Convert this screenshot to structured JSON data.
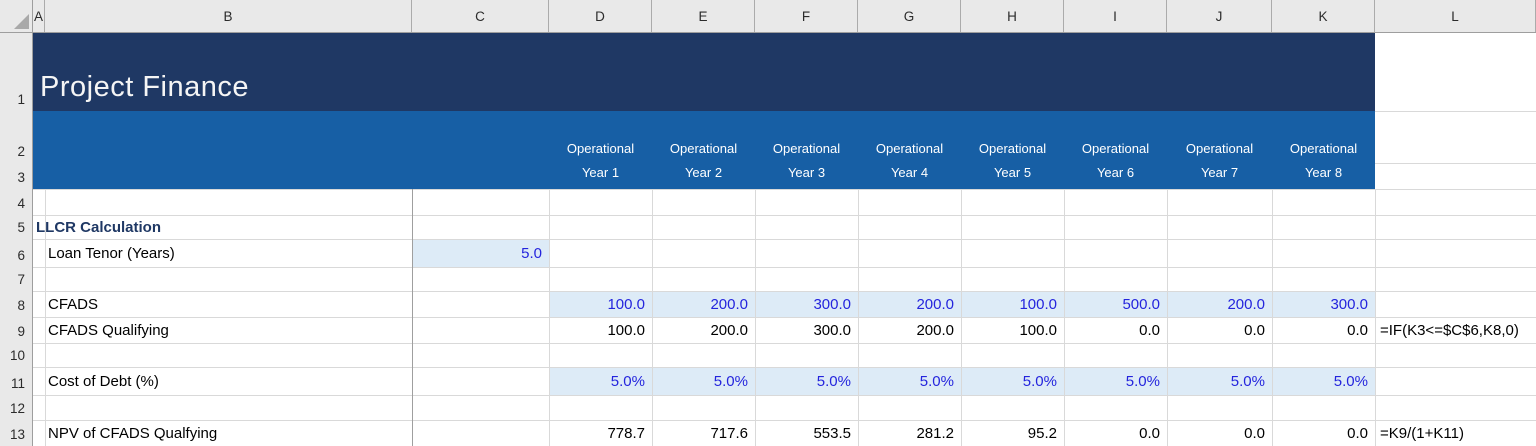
{
  "banner": {
    "title": "Project Finance",
    "year_headers": [
      {
        "col": "D",
        "line1": "Operational",
        "line2": "Year 1"
      },
      {
        "col": "E",
        "line1": "Operational",
        "line2": "Year 2"
      },
      {
        "col": "F",
        "line1": "Operational",
        "line2": "Year 3"
      },
      {
        "col": "G",
        "line1": "Operational",
        "line2": "Year 4"
      },
      {
        "col": "H",
        "line1": "Operational",
        "line2": "Year 5"
      },
      {
        "col": "I",
        "line1": "Operational",
        "line2": "Year 6"
      },
      {
        "col": "J",
        "line1": "Operational",
        "line2": "Year 7"
      },
      {
        "col": "K",
        "line1": "Operational",
        "line2": "Year 8"
      }
    ]
  },
  "sheet": {
    "column_letters": [
      "A",
      "B",
      "C",
      "D",
      "E",
      "F",
      "G",
      "H",
      "I",
      "J",
      "K",
      "L"
    ],
    "row_numbers": [
      "1",
      "2",
      "3",
      "4",
      "5",
      "6",
      "7",
      "8",
      "9",
      "10",
      "11",
      "12",
      "13"
    ]
  },
  "labels": [
    {
      "row": 5,
      "text": "LLCR Calculation",
      "style": "section"
    },
    {
      "row": 6,
      "text": "Loan Tenor (Years)",
      "style": "plain"
    },
    {
      "row": 8,
      "text": "CFADS",
      "style": "plain"
    },
    {
      "row": 9,
      "text": "CFADS Qualifying",
      "style": "plain"
    },
    {
      "row": 11,
      "text": "Cost of Debt (%)",
      "style": "plain"
    },
    {
      "row": 13,
      "text": "NPV of CFADS Qualfying",
      "style": "plain"
    }
  ],
  "cells": [
    {
      "row": 6,
      "col": "C",
      "text": "5.0",
      "style": "input"
    },
    {
      "row": 8,
      "col": "D",
      "text": "100.0",
      "style": "input"
    },
    {
      "row": 8,
      "col": "E",
      "text": "200.0",
      "style": "input"
    },
    {
      "row": 8,
      "col": "F",
      "text": "300.0",
      "style": "input"
    },
    {
      "row": 8,
      "col": "G",
      "text": "200.0",
      "style": "input"
    },
    {
      "row": 8,
      "col": "H",
      "text": "100.0",
      "style": "input"
    },
    {
      "row": 8,
      "col": "I",
      "text": "500.0",
      "style": "input"
    },
    {
      "row": 8,
      "col": "J",
      "text": "200.0",
      "style": "input"
    },
    {
      "row": 8,
      "col": "K",
      "text": "300.0",
      "style": "input"
    },
    {
      "row": 9,
      "col": "D",
      "text": "100.0",
      "style": "calc"
    },
    {
      "row": 9,
      "col": "E",
      "text": "200.0",
      "style": "calc"
    },
    {
      "row": 9,
      "col": "F",
      "text": "300.0",
      "style": "calc"
    },
    {
      "row": 9,
      "col": "G",
      "text": "200.0",
      "style": "calc"
    },
    {
      "row": 9,
      "col": "H",
      "text": "100.0",
      "style": "calc"
    },
    {
      "row": 9,
      "col": "I",
      "text": "0.0",
      "style": "calc"
    },
    {
      "row": 9,
      "col": "J",
      "text": "0.0",
      "style": "calc"
    },
    {
      "row": 9,
      "col": "K",
      "text": "0.0",
      "style": "calc"
    },
    {
      "row": 9,
      "col": "L",
      "text": "=IF(K3<=$C$6,K8,0)",
      "style": "formula"
    },
    {
      "row": 11,
      "col": "D",
      "text": "5.0%",
      "style": "input"
    },
    {
      "row": 11,
      "col": "E",
      "text": "5.0%",
      "style": "input"
    },
    {
      "row": 11,
      "col": "F",
      "text": "5.0%",
      "style": "input"
    },
    {
      "row": 11,
      "col": "G",
      "text": "5.0%",
      "style": "input"
    },
    {
      "row": 11,
      "col": "H",
      "text": "5.0%",
      "style": "input"
    },
    {
      "row": 11,
      "col": "I",
      "text": "5.0%",
      "style": "input"
    },
    {
      "row": 11,
      "col": "J",
      "text": "5.0%",
      "style": "input"
    },
    {
      "row": 11,
      "col": "K",
      "text": "5.0%",
      "style": "input"
    },
    {
      "row": 13,
      "col": "D",
      "text": "778.7",
      "style": "calc"
    },
    {
      "row": 13,
      "col": "E",
      "text": "717.6",
      "style": "calc"
    },
    {
      "row": 13,
      "col": "F",
      "text": "553.5",
      "style": "calc"
    },
    {
      "row": 13,
      "col": "G",
      "text": "281.2",
      "style": "calc"
    },
    {
      "row": 13,
      "col": "H",
      "text": "95.2",
      "style": "calc"
    },
    {
      "row": 13,
      "col": "I",
      "text": "0.0",
      "style": "calc"
    },
    {
      "row": 13,
      "col": "J",
      "text": "0.0",
      "style": "calc"
    },
    {
      "row": 13,
      "col": "K",
      "text": "0.0",
      "style": "calc"
    },
    {
      "row": 13,
      "col": "L",
      "text": "=K9/(1+K11)",
      "style": "formula"
    }
  ],
  "colors": {
    "banner_navy": "#1f3864",
    "banner_blue": "#175fa5",
    "input_fill": "#ddebf7",
    "input_text": "#2424dd",
    "section_text": "#1f3864",
    "header_gray": "#e9e9e9",
    "gridline": "#d9d9d9"
  }
}
